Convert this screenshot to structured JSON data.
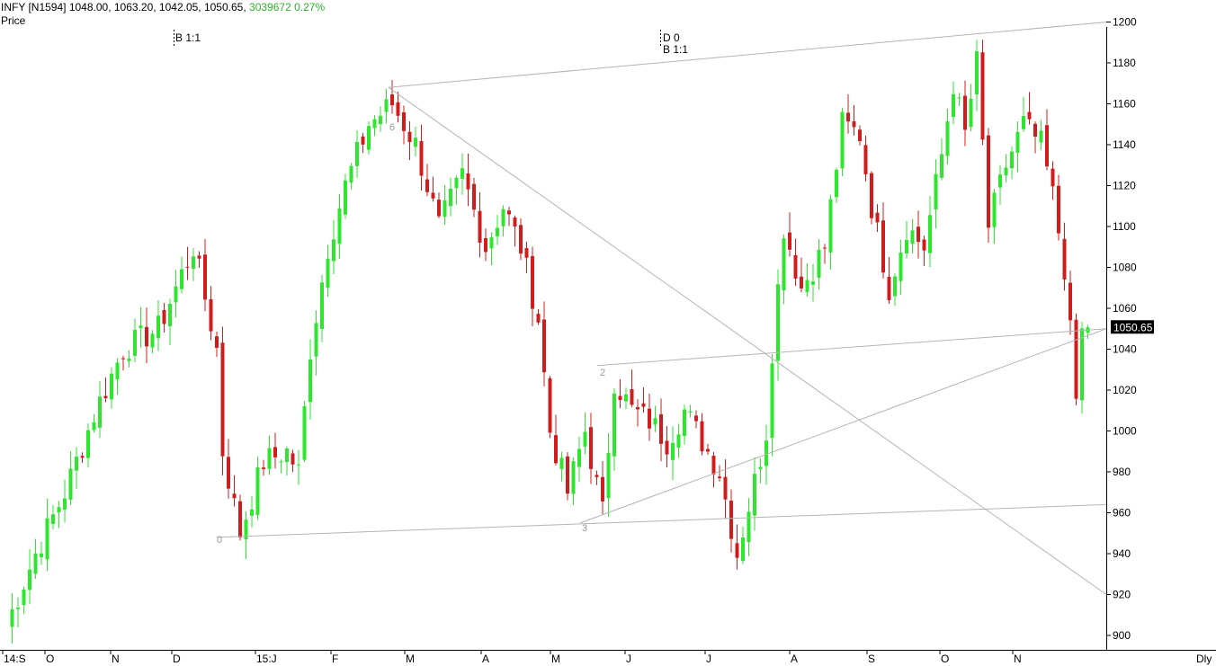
{
  "header": {
    "symbol": "INFY [N1594]",
    "ohlc": "1048.00, 1063.20, 1042.05, 1050.65,",
    "volume": "3039672",
    "change": "0.27%",
    "panel_label": "Price"
  },
  "markers": [
    {
      "label": "B 1:1"
    },
    {
      "label": "D 0"
    },
    {
      "label": "B 1:1"
    }
  ],
  "period_label": "Dly",
  "colors": {
    "up": "#2ee62e",
    "down": "#d01c1c",
    "trendline": "#b4b4b4",
    "axis": "#000000"
  },
  "chart_data": {
    "type": "candlestick",
    "symbol": "INFY",
    "last_price": 1050.65,
    "last_price_label": "1050.65",
    "ylim": [
      890,
      1220
    ],
    "y_ticks": [
      900,
      920,
      940,
      960,
      980,
      1000,
      1020,
      1040,
      1060,
      1080,
      1100,
      1120,
      1140,
      1160,
      1180,
      1200
    ],
    "x_ticks": [
      "14:S",
      "O",
      "N",
      "D",
      "15:J",
      "F",
      "M",
      "A",
      "M",
      "J",
      "J",
      "A",
      "S",
      "O",
      "N"
    ],
    "pivot_labels": [
      {
        "label": "0",
        "price": 948
      },
      {
        "label": "6",
        "price": 1168
      },
      {
        "label": "2",
        "price": 1032
      },
      {
        "label": "3",
        "price": 955
      }
    ],
    "trendlines": [
      {
        "from": [
          0,
          948
        ],
        "to": [
          190,
          964
        ]
      },
      {
        "from": [
          2,
          1168
        ],
        "to": [
          190,
          1200
        ]
      },
      {
        "from": [
          2,
          1168
        ],
        "to": [
          190,
          920
        ]
      },
      {
        "from": [
          1,
          1032
        ],
        "to": [
          190,
          1050
        ]
      },
      {
        "from": [
          3,
          955
        ],
        "to": [
          190,
          1050
        ]
      }
    ],
    "anchors": [
      [
        0,
        905
      ],
      [
        5,
        940
      ],
      [
        10,
        970
      ],
      [
        15,
        1008
      ],
      [
        20,
        1040
      ],
      [
        26,
        1050
      ],
      [
        32,
        1090
      ],
      [
        34,
        1065
      ],
      [
        36,
        1040
      ],
      [
        37,
        990
      ],
      [
        40,
        950
      ],
      [
        44,
        985
      ],
      [
        48,
        990
      ],
      [
        50,
        980
      ],
      [
        52,
        1040
      ],
      [
        55,
        1090
      ],
      [
        58,
        1120
      ],
      [
        62,
        1150
      ],
      [
        66,
        1160
      ],
      [
        70,
        1140
      ],
      [
        74,
        1100
      ],
      [
        78,
        1125
      ],
      [
        82,
        1090
      ],
      [
        85,
        1110
      ],
      [
        88,
        1090
      ],
      [
        91,
        1055
      ],
      [
        93,
        1000
      ],
      [
        96,
        970
      ],
      [
        99,
        1000
      ],
      [
        102,
        960
      ],
      [
        104,
        1025
      ],
      [
        107,
        1010
      ],
      [
        110,
        1005
      ],
      [
        113,
        995
      ],
      [
        116,
        1010
      ],
      [
        119,
        995
      ],
      [
        122,
        980
      ],
      [
        125,
        940
      ],
      [
        128,
        975
      ],
      [
        130,
        1000
      ],
      [
        131,
        1040
      ],
      [
        133,
        1100
      ],
      [
        136,
        1070
      ],
      [
        140,
        1090
      ],
      [
        143,
        1150
      ],
      [
        146,
        1145
      ],
      [
        148,
        1110
      ],
      [
        151,
        1070
      ],
      [
        154,
        1100
      ],
      [
        157,
        1090
      ],
      [
        160,
        1135
      ],
      [
        162,
        1170
      ],
      [
        164,
        1145
      ],
      [
        166,
        1180
      ],
      [
        168,
        1100
      ],
      [
        171,
        1130
      ],
      [
        174,
        1150
      ],
      [
        177,
        1140
      ],
      [
        179,
        1115
      ],
      [
        181,
        1080
      ],
      [
        183,
        1015
      ],
      [
        184,
        1048
      ],
      [
        185,
        1050
      ]
    ]
  }
}
